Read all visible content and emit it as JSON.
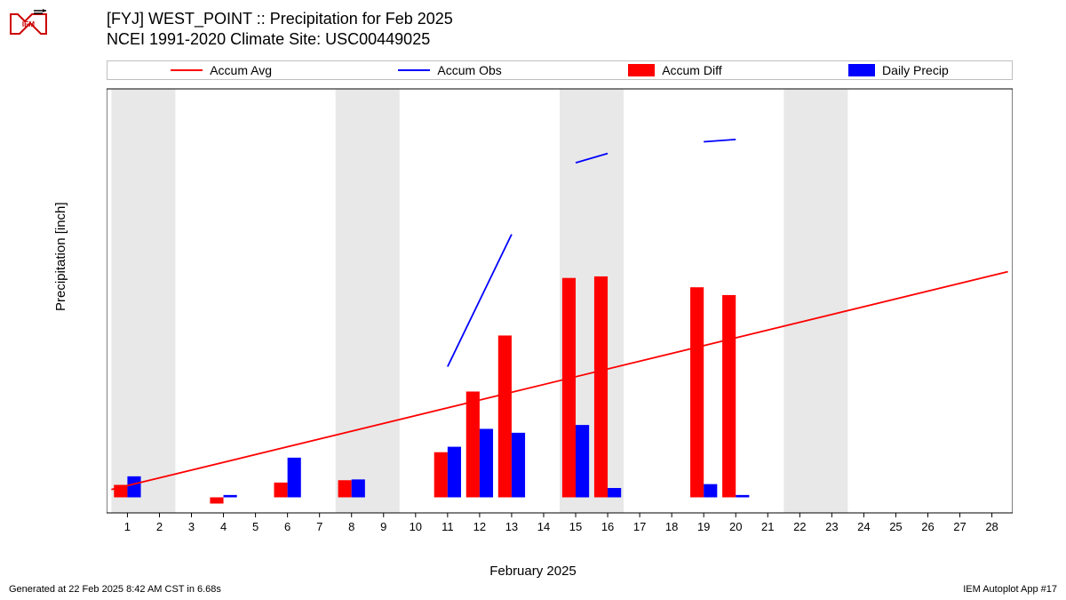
{
  "title": {
    "line1": "[FYJ] WEST_POINT :: Precipitation for Feb 2025",
    "line2": "NCEI 1991-2020 Climate Site: USC00449025"
  },
  "legend": {
    "items": [
      {
        "label": "Accum Avg",
        "type": "line",
        "color": "#ff0000"
      },
      {
        "label": "Accum Obs",
        "type": "line",
        "color": "#0000ff"
      },
      {
        "label": "Accum Diff",
        "type": "box",
        "color": "#ff0000"
      },
      {
        "label": "Daily Precip",
        "type": "box",
        "color": "#0000ff"
      }
    ]
  },
  "chart": {
    "type": "combo-bar-line",
    "ylabel": "Precipitation [inch]",
    "xlabel": "February 2025",
    "ylim": [
      -0.2,
      5.25
    ],
    "yticks": [
      0,
      1,
      2,
      3,
      4,
      5
    ],
    "xlim": [
      0.35,
      28.65
    ],
    "xticks": [
      1,
      2,
      3,
      4,
      5,
      6,
      7,
      8,
      9,
      10,
      11,
      12,
      13,
      14,
      15,
      16,
      17,
      18,
      19,
      20,
      21,
      22,
      23,
      24,
      25,
      26,
      27,
      28
    ],
    "background_color": "#ffffff",
    "weekend_bg_color": "#e8e8e8",
    "grid_color": "#bfbfbf",
    "bar_width": 0.42,
    "weekend_bands": [
      [
        1,
        2
      ],
      [
        8,
        9
      ],
      [
        15,
        16
      ],
      [
        22,
        23
      ]
    ],
    "accum_diff": {
      "color": "#ff0000",
      "data": {
        "1": 0.16,
        "4": -0.08,
        "6": 0.19,
        "8": 0.22,
        "11": 0.58,
        "12": 1.36,
        "13": 2.08,
        "15": 2.82,
        "16": 2.84,
        "19": 2.7,
        "20": 2.6
      }
    },
    "daily_precip": {
      "color": "#0000ff",
      "data": {
        "1": 0.27,
        "4": 0.03,
        "6": 0.51,
        "8": 0.23,
        "11": 0.65,
        "12": 0.88,
        "13": 0.83,
        "15": 0.93,
        "16": 0.12,
        "19": 0.17,
        "20": 0.03
      }
    },
    "accum_avg_line": {
      "color": "#ff0000",
      "points": [
        [
          0.5,
          0.1
        ],
        [
          28.5,
          2.9
        ]
      ]
    },
    "accum_obs_segments": {
      "color": "#0000ff",
      "segments": [
        [
          [
            11,
            1.68
          ],
          [
            13,
            3.38
          ]
        ],
        [
          [
            15,
            4.3
          ],
          [
            16,
            4.42
          ]
        ],
        [
          [
            19,
            4.57
          ],
          [
            20,
            4.6
          ]
        ]
      ]
    }
  },
  "footer": {
    "left": "Generated at 22 Feb 2025 8:42 AM CST in 6.68s",
    "right": "IEM Autoplot App #17"
  }
}
